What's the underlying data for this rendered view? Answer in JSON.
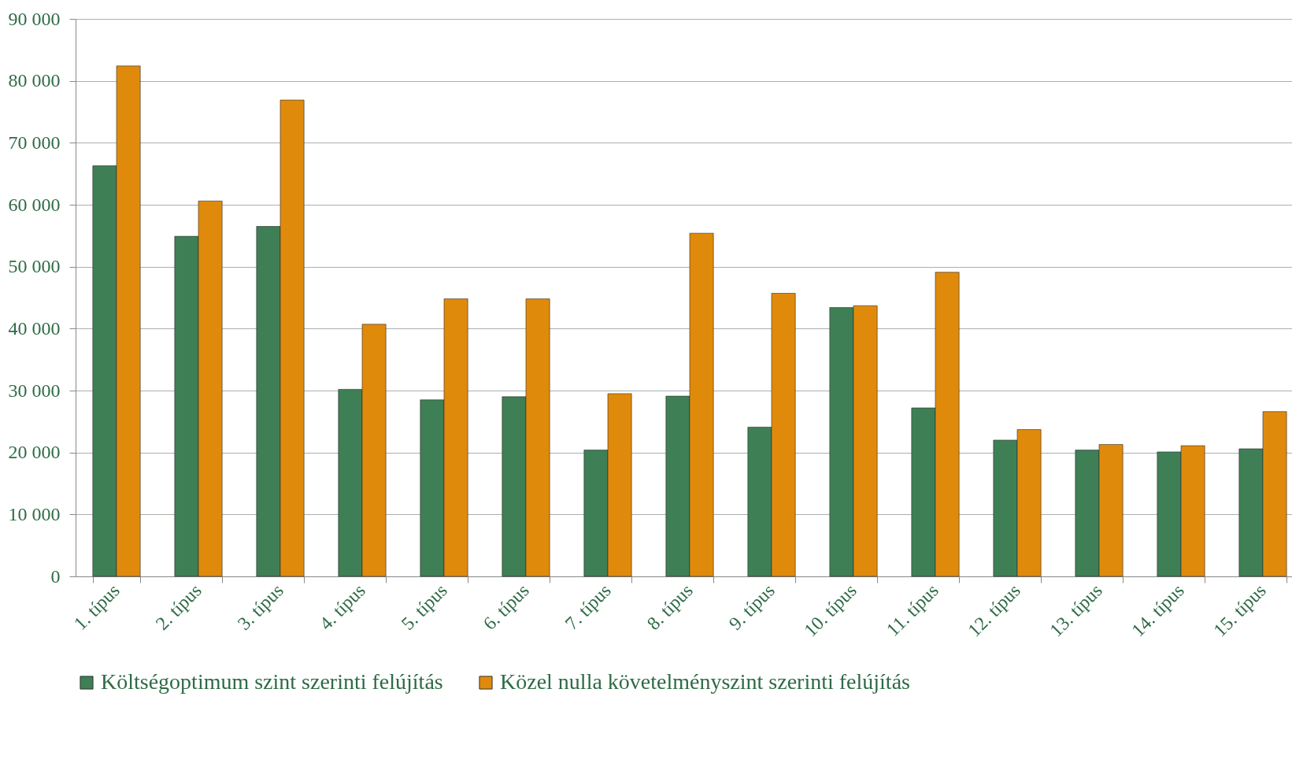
{
  "chart_data": {
    "type": "bar",
    "categories": [
      "1. típus",
      "2. típus",
      "3. típus",
      "4. típus",
      "5. típus",
      "6. típus",
      "7. típus",
      "8. típus",
      "9. típus",
      "10. típus",
      "11. típus",
      "12. típus",
      "13. típus",
      "14. típus",
      "15. típus"
    ],
    "series": [
      {
        "name": "Költségoptimum szint szerinti felújítás",
        "color": "#3f7f55",
        "values": [
          66300,
          54900,
          56500,
          30200,
          28500,
          29000,
          20400,
          29100,
          24100,
          43400,
          27200,
          22000,
          20400,
          20100,
          20600
        ]
      },
      {
        "name": "Közel nulla követelményszint szerinti felújítás",
        "color": "#e08a0c",
        "values": [
          82400,
          60600,
          76900,
          40700,
          44800,
          44800,
          29500,
          55400,
          45700,
          43700,
          49100,
          23700,
          21300,
          21100,
          26600
        ]
      }
    ],
    "ylim": [
      0,
      90000
    ],
    "yticks": [
      {
        "value": 0,
        "label": "0"
      },
      {
        "value": 10000,
        "label": "10 000"
      },
      {
        "value": 20000,
        "label": "20 000"
      },
      {
        "value": 30000,
        "label": "30 000"
      },
      {
        "value": 40000,
        "label": "40 000"
      },
      {
        "value": 50000,
        "label": "50 000"
      },
      {
        "value": 60000,
        "label": "60 000"
      },
      {
        "value": 70000,
        "label": "70 000"
      },
      {
        "value": 80000,
        "label": "80 000"
      },
      {
        "value": 90000,
        "label": "90 000"
      }
    ],
    "grid": "y",
    "legend": "bottom"
  }
}
